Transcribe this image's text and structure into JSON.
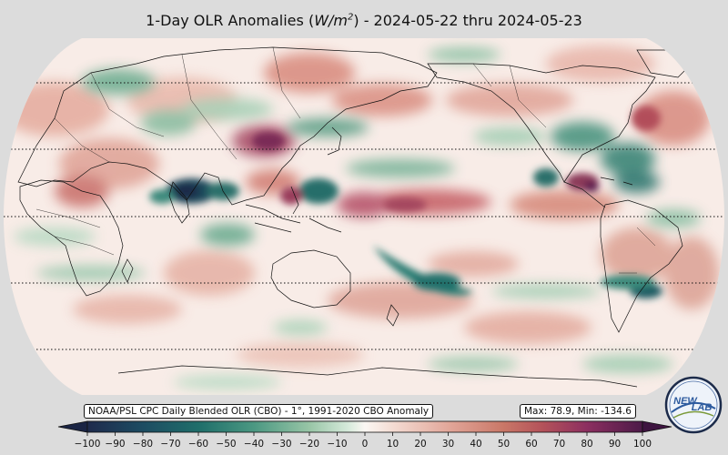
{
  "title": {
    "main": "1-Day OLR Anomalies (",
    "unit_base": "W/m",
    "unit_sup": "2",
    "dates": ") - 2024-05-22 thru 2024-05-23"
  },
  "source_label": "NOAA/PSL CPC Daily Blended OLR (CBO) - 1°, 1991-2020 CBO Anomaly",
  "stats_label": "Max: 78.9,  Min: -134.6",
  "colorbar": {
    "ticks": [
      "−100",
      "−90",
      "−80",
      "−70",
      "−60",
      "−50",
      "−40",
      "−30",
      "−20",
      "−10",
      "0",
      "10",
      "20",
      "30",
      "40",
      "50",
      "60",
      "70",
      "80",
      "90",
      "100"
    ],
    "min": -100,
    "max": 100,
    "extend": "both"
  },
  "colors": {
    "negative_extreme": "#1a2a4a",
    "negative_strong": "#1f6e6a",
    "negative_light": "#c9e2d2",
    "neutral": "#fbf4f0",
    "positive_light": "#edc3b8",
    "positive_strong": "#c25a52",
    "positive_extreme": "#5c1a4e"
  },
  "map": {
    "projection": "robinson",
    "gridlines": "dotted latitude lines",
    "central_longitude": "180"
  },
  "logo": {
    "text_a": "NEW",
    "text_b": "LAB"
  }
}
